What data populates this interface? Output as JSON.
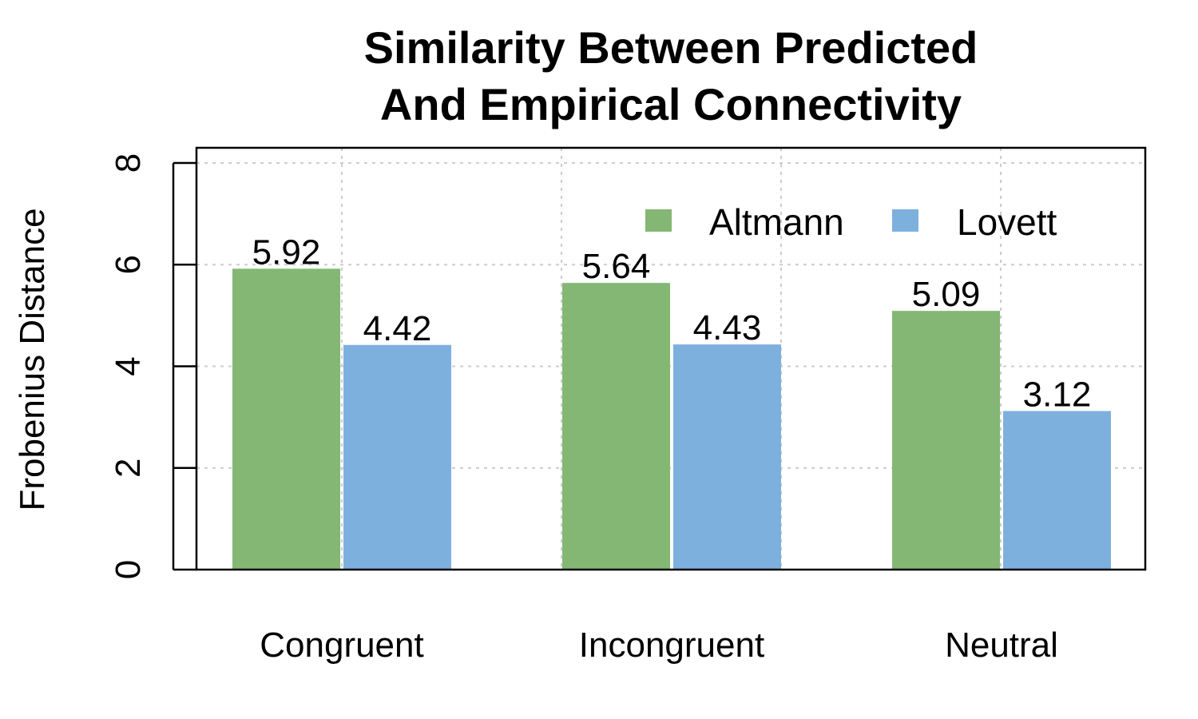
{
  "chart_data": {
    "type": "bar",
    "title": [
      "Similarity Between Predicted",
      "And Empirical Connectivity"
    ],
    "xlabel": "",
    "ylabel": "Frobenius Distance",
    "categories": [
      "Congruent",
      "Incongruent",
      "Neutral"
    ],
    "series": [
      {
        "name": "Altmann",
        "values": [
          5.92,
          5.64,
          5.09
        ],
        "color": "#84b774"
      },
      {
        "name": "Lovett",
        "values": [
          4.42,
          4.43,
          3.12
        ],
        "color": "#7eb0de"
      }
    ],
    "value_labels": [
      [
        "5.92",
        "5.64",
        "5.09"
      ],
      [
        "4.42",
        "4.43",
        "3.12"
      ]
    ],
    "ylim": [
      0,
      8.3
    ],
    "yticks": [
      0,
      2,
      4,
      6,
      8
    ],
    "ytick_labels": [
      "0",
      "2",
      "4",
      "6",
      "8"
    ],
    "grid": true,
    "legend_position": "top-right"
  }
}
